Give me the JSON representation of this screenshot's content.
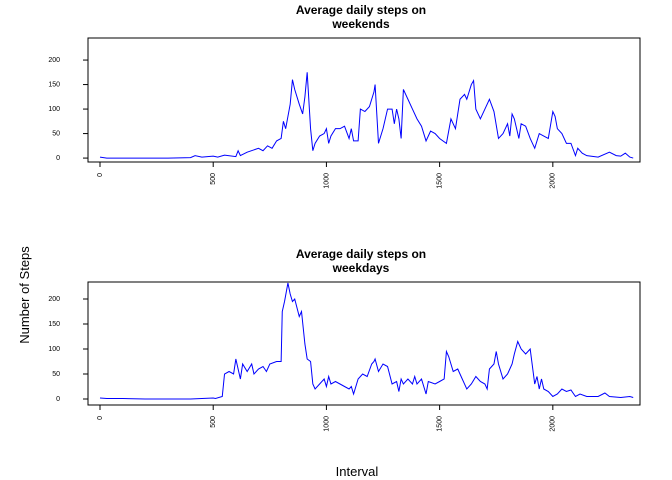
{
  "xlabel": "Interval",
  "ylabel": "Number of Steps",
  "chart_data": [
    {
      "type": "line",
      "title": [
        "Average daily steps on",
        "weekends"
      ],
      "color": "#0000ff",
      "xlim": [
        -53,
        2385
      ],
      "ylim": [
        -8,
        245
      ],
      "xticks": [
        0,
        500,
        1000,
        1500,
        2000
      ],
      "yticks": [
        0,
        50,
        100,
        150,
        200
      ],
      "x": [
        0,
        30,
        100,
        300,
        400,
        420,
        450,
        500,
        520,
        550,
        600,
        610,
        620,
        650,
        700,
        720,
        740,
        760,
        780,
        800,
        810,
        820,
        840,
        850,
        860,
        880,
        895,
        905,
        915,
        930,
        940,
        950,
        970,
        990,
        1000,
        1010,
        1020,
        1040,
        1060,
        1080,
        1100,
        1110,
        1120,
        1140,
        1150,
        1170,
        1190,
        1210,
        1215,
        1230,
        1250,
        1270,
        1290,
        1300,
        1310,
        1320,
        1330,
        1340,
        1360,
        1380,
        1400,
        1420,
        1440,
        1460,
        1480,
        1500,
        1530,
        1550,
        1570,
        1590,
        1610,
        1620,
        1640,
        1650,
        1660,
        1680,
        1700,
        1720,
        1740,
        1760,
        1780,
        1800,
        1810,
        1820,
        1830,
        1840,
        1850,
        1860,
        1880,
        1900,
        1920,
        1940,
        1960,
        1980,
        2000,
        2010,
        2020,
        2040,
        2060,
        2080,
        2100,
        2110,
        2130,
        2150,
        2200,
        2250,
        2280,
        2300,
        2320,
        2340,
        2355
      ],
      "values": [
        2,
        0,
        0,
        0,
        1,
        5,
        2,
        4,
        2,
        6,
        3,
        15,
        5,
        12,
        20,
        15,
        25,
        20,
        35,
        40,
        75,
        60,
        110,
        160,
        140,
        110,
        90,
        125,
        175,
        60,
        15,
        30,
        45,
        50,
        60,
        30,
        45,
        60,
        60,
        65,
        40,
        60,
        35,
        35,
        100,
        95,
        105,
        135,
        150,
        30,
        60,
        100,
        100,
        70,
        100,
        80,
        40,
        140,
        120,
        100,
        80,
        65,
        35,
        55,
        50,
        40,
        30,
        80,
        60,
        120,
        130,
        120,
        150,
        158,
        100,
        80,
        100,
        120,
        95,
        40,
        50,
        70,
        45,
        90,
        80,
        60,
        40,
        70,
        65,
        40,
        20,
        50,
        45,
        40,
        95,
        85,
        60,
        50,
        30,
        30,
        5,
        20,
        10,
        5,
        2,
        12,
        5,
        4,
        10,
        2,
        0
      ]
    },
    {
      "type": "line",
      "title": [
        "Average daily steps on",
        "weekdays"
      ],
      "color": "#0000ff",
      "xlim": [
        -53,
        2385
      ],
      "ylim": [
        -12,
        234
      ],
      "xticks": [
        0,
        500,
        1000,
        1500,
        2000
      ],
      "yticks": [
        0,
        50,
        100,
        150,
        200
      ],
      "x": [
        0,
        30,
        100,
        200,
        300,
        400,
        450,
        500,
        510,
        540,
        550,
        570,
        590,
        600,
        610,
        620,
        630,
        650,
        670,
        680,
        700,
        720,
        735,
        750,
        780,
        800,
        805,
        815,
        830,
        840,
        850,
        860,
        880,
        890,
        905,
        915,
        930,
        940,
        950,
        970,
        990,
        1000,
        1010,
        1020,
        1040,
        1060,
        1080,
        1100,
        1110,
        1120,
        1140,
        1160,
        1180,
        1200,
        1210,
        1215,
        1230,
        1250,
        1270,
        1290,
        1310,
        1320,
        1330,
        1340,
        1360,
        1380,
        1390,
        1400,
        1420,
        1440,
        1450,
        1480,
        1500,
        1520,
        1530,
        1540,
        1560,
        1580,
        1600,
        1620,
        1640,
        1660,
        1680,
        1700,
        1710,
        1720,
        1740,
        1750,
        1760,
        1780,
        1800,
        1810,
        1820,
        1830,
        1845,
        1860,
        1880,
        1900,
        1920,
        1930,
        1940,
        1950,
        1960,
        1980,
        2000,
        2020,
        2040,
        2060,
        2080,
        2100,
        2120,
        2150,
        2200,
        2230,
        2250,
        2300,
        2340,
        2355
      ],
      "values": [
        2,
        1,
        1,
        0,
        0,
        0,
        1,
        2,
        1,
        5,
        50,
        55,
        50,
        80,
        60,
        40,
        70,
        55,
        70,
        50,
        60,
        65,
        55,
        70,
        75,
        75,
        175,
        195,
        232,
        210,
        195,
        200,
        165,
        175,
        110,
        80,
        75,
        30,
        20,
        30,
        40,
        25,
        45,
        30,
        35,
        30,
        25,
        20,
        25,
        10,
        40,
        50,
        45,
        70,
        75,
        80,
        55,
        70,
        65,
        30,
        35,
        15,
        40,
        30,
        40,
        30,
        45,
        30,
        40,
        10,
        35,
        30,
        35,
        40,
        95,
        85,
        55,
        60,
        40,
        20,
        30,
        45,
        35,
        30,
        20,
        60,
        70,
        95,
        70,
        40,
        50,
        60,
        70,
        90,
        115,
        100,
        90,
        100,
        30,
        45,
        20,
        40,
        20,
        15,
        5,
        10,
        20,
        15,
        18,
        5,
        10,
        5,
        5,
        12,
        5,
        3,
        5,
        3
      ]
    }
  ]
}
